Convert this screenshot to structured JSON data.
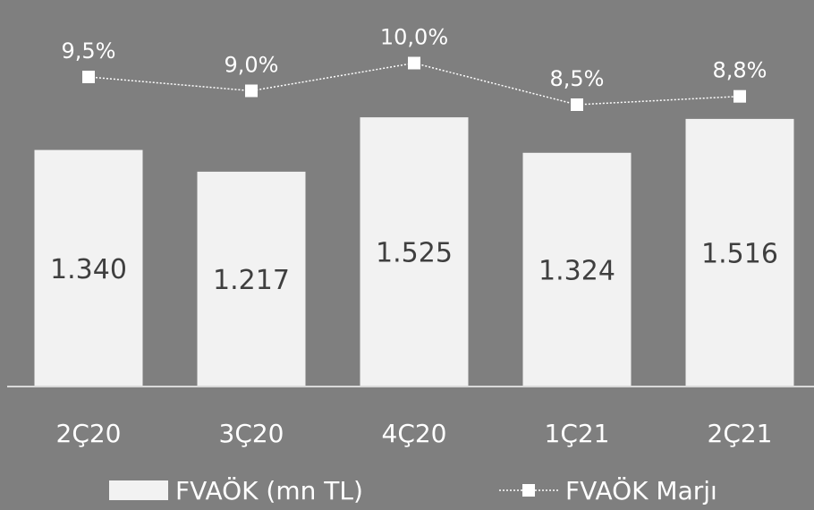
{
  "chart_data": {
    "type": "bar",
    "categories": [
      "2Ç20",
      "3Ç20",
      "4Ç20",
      "1Ç21",
      "2Ç21"
    ],
    "series": [
      {
        "name": "FVAÖK (mn TL)",
        "type": "bar",
        "values": [
          1340,
          1217,
          1525,
          1324,
          1516
        ],
        "labels": [
          "1.340",
          "1.217",
          "1.525",
          "1.324",
          "1.516"
        ]
      },
      {
        "name": "FVAÖK Marjı",
        "type": "line",
        "values": [
          9.5,
          9.0,
          10.0,
          8.5,
          8.8
        ],
        "labels": [
          "9,5%",
          "9,0%",
          "10,0%",
          "8,5%",
          "8,8%"
        ]
      }
    ],
    "title": "",
    "xlabel": "",
    "ylabel": "",
    "grid": false,
    "legend_position": "bottom",
    "colors": {
      "background": "#7f7f7f",
      "bar": "#f2f2f2",
      "line": "#ffffff",
      "axis": "#d9d9d9",
      "bar_label": "#3f3f3f",
      "text": "#ffffff"
    }
  }
}
